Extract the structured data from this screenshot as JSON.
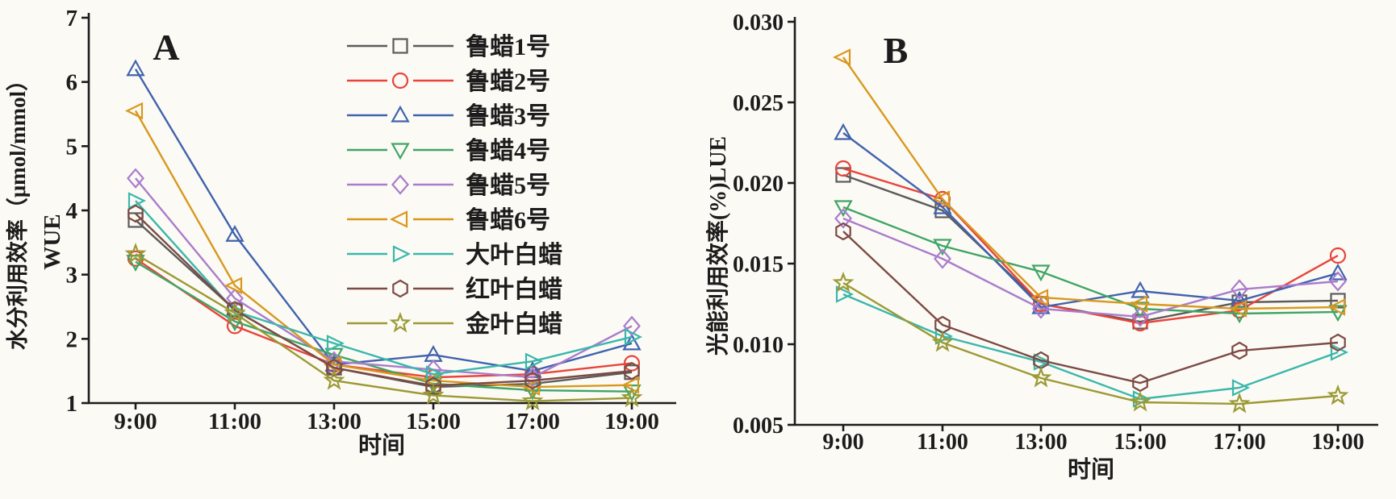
{
  "figure": {
    "background": "#fcfaf4",
    "axis_color": "#1c1c1c",
    "description": "Two-panel line chart figure comparing nine ash tree cultivars over daytime hours"
  },
  "chart_data": [
    {
      "id": "A",
      "type": "line",
      "panel_label": "A",
      "xlabel": "时间",
      "ylabel_cn": "水分利用效率（μmol/mmol）",
      "ylabel_en": "WUE",
      "x_categories": [
        "9:00",
        "11:00",
        "13:00",
        "15:00",
        "17:00",
        "19:00"
      ],
      "ylim": [
        1,
        7
      ],
      "yticks": [
        "1",
        "2",
        "3",
        "4",
        "5",
        "6",
        "7"
      ],
      "grid": false,
      "legend_position": "upper-right-inside",
      "show_legend": true,
      "series": [
        {
          "name": "鲁蜡1号",
          "marker": "square",
          "color": "#5b5b5b",
          "values": [
            3.85,
            2.45,
            1.55,
            1.25,
            1.3,
            1.48
          ]
        },
        {
          "name": "鲁蜡2号",
          "marker": "circle",
          "color": "#e8443c",
          "values": [
            3.25,
            2.2,
            1.6,
            1.4,
            1.45,
            1.62
          ]
        },
        {
          "name": "鲁蜡3号",
          "marker": "triangle-up",
          "color": "#4063ae",
          "values": [
            6.2,
            3.62,
            1.6,
            1.75,
            1.5,
            1.93
          ]
        },
        {
          "name": "鲁蜡4号",
          "marker": "triangle-down",
          "color": "#3fa566",
          "values": [
            3.2,
            2.27,
            1.75,
            1.3,
            1.2,
            1.18
          ]
        },
        {
          "name": "鲁蜡5号",
          "marker": "diamond",
          "color": "#a97ccd",
          "values": [
            4.5,
            2.63,
            1.65,
            1.52,
            1.4,
            2.2
          ]
        },
        {
          "name": "鲁蜡6号",
          "marker": "triangle-left",
          "color": "#d8981f",
          "values": [
            5.55,
            2.83,
            1.6,
            1.35,
            1.25,
            1.28
          ]
        },
        {
          "name": "大叶白蜡",
          "marker": "triangle-right",
          "color": "#3ab7ac",
          "values": [
            4.15,
            2.43,
            1.93,
            1.45,
            1.65,
            2.03
          ]
        },
        {
          "name": "红叶白蜡",
          "marker": "hexagon",
          "color": "#7c4a45",
          "values": [
            3.95,
            2.45,
            1.55,
            1.27,
            1.35,
            1.5
          ]
        },
        {
          "name": "金叶白蜡",
          "marker": "star",
          "color": "#9b9a35",
          "values": [
            3.32,
            2.4,
            1.35,
            1.12,
            1.03,
            1.08
          ]
        }
      ]
    },
    {
      "id": "B",
      "type": "line",
      "panel_label": "B",
      "xlabel": "时间",
      "ylabel_cn": "光能利用效率(%)LUE",
      "x_categories": [
        "9:00",
        "11:00",
        "13:00",
        "15:00",
        "17:00",
        "19:00"
      ],
      "ylim": [
        0.005,
        0.03
      ],
      "yticks": [
        "0.005",
        "0.010",
        "0.015",
        "0.020",
        "0.025",
        "0.030"
      ],
      "grid": false,
      "show_legend": false,
      "series": [
        {
          "name": "鲁蜡1号",
          "marker": "square",
          "color": "#5b5b5b",
          "values": [
            0.0205,
            0.0183,
            0.0125,
            0.0114,
            0.0126,
            0.0127
          ]
        },
        {
          "name": "鲁蜡2号",
          "marker": "circle",
          "color": "#e8443c",
          "values": [
            0.0209,
            0.019,
            0.0125,
            0.0113,
            0.0121,
            0.0155
          ]
        },
        {
          "name": "鲁蜡3号",
          "marker": "triangle-up",
          "color": "#4063ae",
          "values": [
            0.0231,
            0.0185,
            0.0123,
            0.0133,
            0.0127,
            0.0144
          ]
        },
        {
          "name": "鲁蜡4号",
          "marker": "triangle-down",
          "color": "#3fa566",
          "values": [
            0.0185,
            0.0161,
            0.0145,
            0.0122,
            0.0119,
            0.012
          ]
        },
        {
          "name": "鲁蜡5号",
          "marker": "diamond",
          "color": "#a97ccd",
          "values": [
            0.0178,
            0.0153,
            0.0122,
            0.0117,
            0.0134,
            0.0139
          ]
        },
        {
          "name": "鲁蜡6号",
          "marker": "triangle-left",
          "color": "#d8981f",
          "values": [
            0.0278,
            0.019,
            0.0129,
            0.0125,
            0.0122,
            0.0123
          ]
        },
        {
          "name": "大叶白蜡",
          "marker": "triangle-right",
          "color": "#3ab7ac",
          "values": [
            0.0131,
            0.0105,
            0.0089,
            0.0066,
            0.0073,
            0.0095
          ]
        },
        {
          "name": "红叶白蜡",
          "marker": "hexagon",
          "color": "#7c4a45",
          "values": [
            0.017,
            0.0112,
            0.009,
            0.0076,
            0.0096,
            0.0101
          ]
        },
        {
          "name": "金叶白蜡",
          "marker": "star",
          "color": "#9b9a35",
          "values": [
            0.0138,
            0.0101,
            0.0079,
            0.0064,
            0.0063,
            0.0068
          ]
        }
      ]
    }
  ]
}
